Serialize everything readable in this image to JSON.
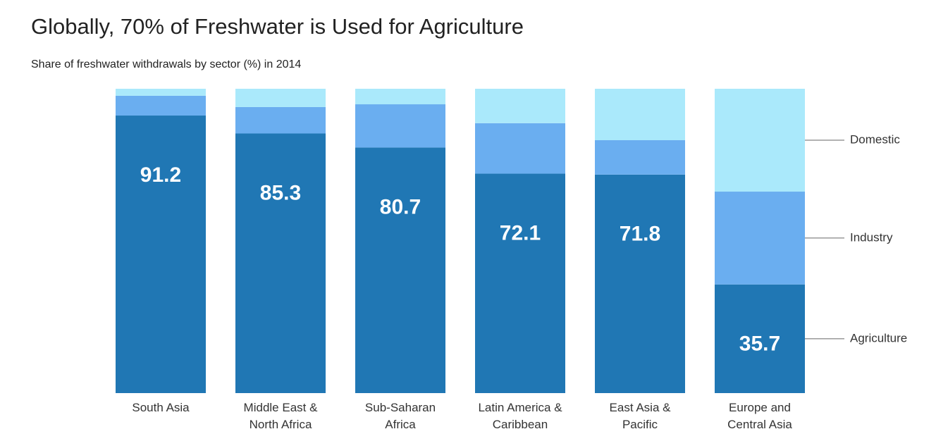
{
  "chart_data": {
    "type": "stacked-bar",
    "title": "Globally, 70% of Freshwater is Used for Agriculture",
    "subtitle": "Share of freshwater withdrawals by sector (%) in 2014",
    "categories": [
      "South Asia",
      "Middle East & North Africa",
      "Sub-Saharan Africa",
      "Latin America & Caribbean",
      "East Asia & Pacific",
      "Europe and Central Asia"
    ],
    "series": [
      {
        "name": "Agriculture",
        "color": "#2077b4",
        "values": [
          91.2,
          85.3,
          80.7,
          72.1,
          71.8,
          35.7
        ]
      },
      {
        "name": "Industry",
        "color": "#6aaef0",
        "values": [
          6.5,
          8.7,
          14.2,
          16.6,
          11.3,
          30.5
        ]
      },
      {
        "name": "Domestic",
        "color": "#aae9fb",
        "values": [
          2.3,
          6.0,
          5.1,
          11.3,
          16.9,
          33.8
        ]
      }
    ],
    "ylim": [
      0,
      100
    ],
    "legend": "right",
    "grid": false
  }
}
